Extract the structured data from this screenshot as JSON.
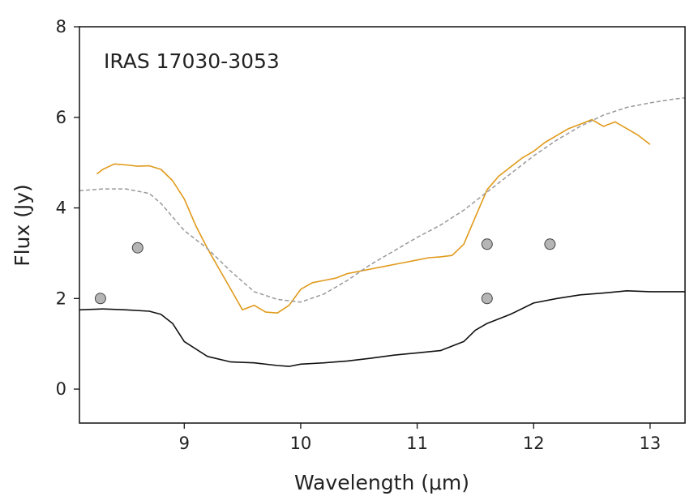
{
  "chart_data": {
    "type": "line",
    "title": "",
    "annotation": "IRAS 17030-3053",
    "xlabel": "Wavelength (μm)",
    "ylabel": "Flux (Jy)",
    "xlim": [
      8.1,
      13.3
    ],
    "ylim": [
      -0.75,
      8.0
    ],
    "xticks": [
      9,
      10,
      11,
      12,
      13
    ],
    "yticks": [
      0,
      2,
      4,
      6,
      8
    ],
    "grid": false,
    "series": [
      {
        "style": "observed-spectrum",
        "color": "#e09a1a",
        "x": [
          8.25,
          8.3,
          8.4,
          8.5,
          8.6,
          8.7,
          8.8,
          8.9,
          9.0,
          9.1,
          9.2,
          9.3,
          9.4,
          9.5,
          9.55,
          9.6,
          9.7,
          9.8,
          9.9,
          10.0,
          10.1,
          10.2,
          10.3,
          10.4,
          10.5,
          10.6,
          10.7,
          10.8,
          10.9,
          11.0,
          11.1,
          11.2,
          11.3,
          11.4,
          11.5,
          11.6,
          11.7,
          11.8,
          11.9,
          12.0,
          12.1,
          12.2,
          12.3,
          12.4,
          12.5,
          12.6,
          12.7,
          12.8,
          12.9,
          13.0
        ],
        "y": [
          4.75,
          4.85,
          4.97,
          4.95,
          4.92,
          4.93,
          4.85,
          4.6,
          4.2,
          3.6,
          3.1,
          2.65,
          2.2,
          1.75,
          1.8,
          1.85,
          1.7,
          1.68,
          1.85,
          2.2,
          2.35,
          2.4,
          2.45,
          2.55,
          2.6,
          2.65,
          2.7,
          2.75,
          2.8,
          2.85,
          2.9,
          2.92,
          2.95,
          3.2,
          3.8,
          4.4,
          4.7,
          4.9,
          5.1,
          5.25,
          5.45,
          5.6,
          5.75,
          5.85,
          5.95,
          5.8,
          5.9,
          5.75,
          5.6,
          5.4
        ]
      },
      {
        "style": "model-dashed",
        "color": "#999999",
        "x": [
          8.1,
          8.3,
          8.5,
          8.7,
          8.8,
          8.9,
          9.0,
          9.2,
          9.4,
          9.6,
          9.8,
          10.0,
          10.2,
          10.4,
          10.6,
          10.8,
          11.0,
          11.2,
          11.4,
          11.6,
          11.8,
          12.0,
          12.2,
          12.4,
          12.6,
          12.8,
          13.0,
          13.2,
          13.3
        ],
        "y": [
          4.38,
          4.42,
          4.42,
          4.32,
          4.1,
          3.8,
          3.5,
          3.1,
          2.6,
          2.15,
          1.98,
          1.92,
          2.1,
          2.4,
          2.75,
          3.05,
          3.35,
          3.62,
          3.95,
          4.35,
          4.75,
          5.15,
          5.5,
          5.8,
          6.05,
          6.22,
          6.32,
          6.4,
          6.43
        ]
      },
      {
        "style": "model-solid",
        "color": "#111111",
        "x": [
          8.1,
          8.3,
          8.5,
          8.7,
          8.8,
          8.9,
          9.0,
          9.2,
          9.4,
          9.6,
          9.8,
          9.9,
          10.0,
          10.2,
          10.4,
          10.6,
          10.8,
          11.0,
          11.2,
          11.4,
          11.5,
          11.6,
          11.8,
          12.0,
          12.2,
          12.4,
          12.6,
          12.8,
          13.0,
          13.2,
          13.3
        ],
        "y": [
          1.75,
          1.77,
          1.75,
          1.72,
          1.65,
          1.45,
          1.05,
          0.72,
          0.6,
          0.58,
          0.52,
          0.5,
          0.55,
          0.58,
          0.62,
          0.68,
          0.75,
          0.8,
          0.85,
          1.05,
          1.3,
          1.45,
          1.65,
          1.9,
          2.0,
          2.08,
          2.12,
          2.17,
          2.15,
          2.15,
          2.15
        ]
      }
    ],
    "points": [
      {
        "x": 8.28,
        "y": 2.0
      },
      {
        "x": 8.6,
        "y": 3.12
      },
      {
        "x": 11.6,
        "y": 3.2
      },
      {
        "x": 11.6,
        "y": 2.0
      },
      {
        "x": 12.14,
        "y": 3.2
      }
    ],
    "point_color": "#b5b5b5"
  }
}
